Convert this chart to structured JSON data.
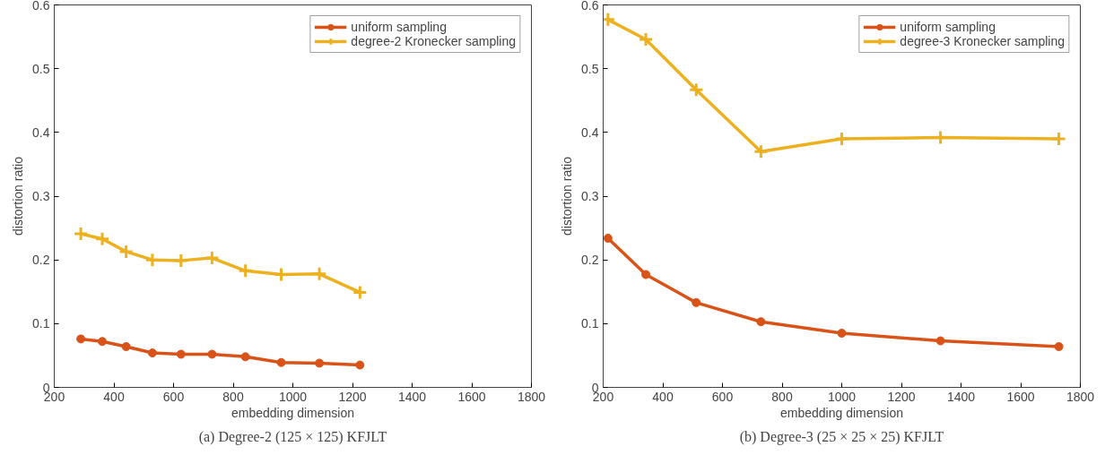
{
  "chart_data": [
    {
      "type": "line",
      "title": "(a) Degree-2 (125 × 125) KFJLT",
      "xlabel": "embedding dimension",
      "ylabel": "distortion ratio",
      "x": [
        289,
        361,
        441,
        529,
        625,
        729,
        841,
        961,
        1089,
        1225
      ],
      "series": [
        {
          "name": "uniform sampling",
          "color": "#d95319",
          "marker": "circle",
          "values": [
            0.076,
            0.072,
            0.064,
            0.054,
            0.052,
            0.052,
            0.048,
            0.039,
            0.038,
            0.035
          ]
        },
        {
          "name": "degree-2 Kronecker sampling",
          "color": "#edb120",
          "marker": "cross",
          "values": [
            0.241,
            0.233,
            0.213,
            0.2,
            0.199,
            0.203,
            0.183,
            0.177,
            0.178,
            0.149
          ]
        }
      ],
      "xlim": [
        200,
        1800
      ],
      "xticks": [
        200,
        400,
        600,
        800,
        1000,
        1200,
        1400,
        1600,
        1800
      ],
      "ylim": [
        0,
        0.6
      ],
      "yticks": [
        0,
        0.1,
        0.2,
        0.3,
        0.4,
        0.5,
        0.6
      ],
      "grid": false,
      "legend": "top right"
    },
    {
      "type": "line",
      "title": "(b) Degree-3 (25 × 25 × 25) KFJLT",
      "xlabel": "embedding dimension",
      "ylabel": "distortion ratio",
      "x": [
        216,
        343,
        512,
        729,
        1000,
        1331,
        1728
      ],
      "series": [
        {
          "name": "uniform sampling",
          "color": "#d95319",
          "marker": "circle",
          "values": [
            0.234,
            0.177,
            0.133,
            0.103,
            0.085,
            0.073,
            0.064
          ]
        },
        {
          "name": "degree-3 Kronecker sampling",
          "color": "#edb120",
          "marker": "cross",
          "values": [
            0.577,
            0.546,
            0.467,
            0.37,
            0.39,
            0.392,
            0.39
          ]
        }
      ],
      "xlim": [
        200,
        1800
      ],
      "xticks": [
        200,
        400,
        600,
        800,
        1000,
        1200,
        1400,
        1600,
        1800
      ],
      "ylim": [
        0,
        0.6
      ],
      "yticks": [
        0,
        0.1,
        0.2,
        0.3,
        0.4,
        0.5,
        0.6
      ],
      "grid": false,
      "legend": "top right"
    }
  ]
}
